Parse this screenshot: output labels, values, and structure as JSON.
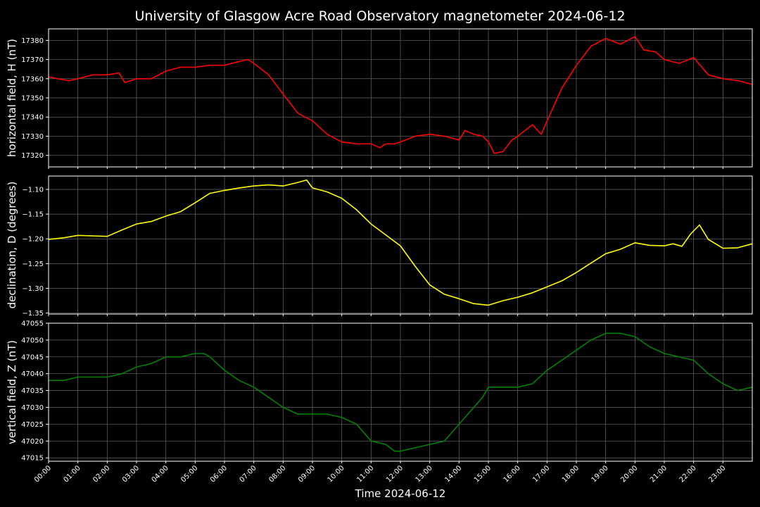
{
  "chart_data": {
    "title": "University of Glasgow Acre Road Observatory magnetometer 2024-06-12",
    "xlabel": "Time 2024-06-12",
    "xlim": [
      0,
      24
    ],
    "x_ticks": [
      "00:00",
      "01:00",
      "02:00",
      "03:00",
      "04:00",
      "05:00",
      "06:00",
      "07:00",
      "08:00",
      "09:00",
      "10:00",
      "11:00",
      "12:00",
      "13:00",
      "14:00",
      "15:00",
      "16:00",
      "17:00",
      "18:00",
      "19:00",
      "20:00",
      "21:00",
      "22:00",
      "23:00"
    ],
    "grid": true,
    "panels": [
      {
        "type": "line",
        "ylabel": "horizontal field, H (nT)",
        "color": "#ff0000",
        "ylim": [
          17314,
          17386
        ],
        "yticks": [
          "17320",
          "17330",
          "17340",
          "17350",
          "17360",
          "17370",
          "17380"
        ],
        "series": [
          {
            "x": [
              0,
              0.3,
              0.7,
              1,
              1.5,
              2,
              2.4,
              2.6,
              2.8,
              3,
              3.5,
              4,
              4.5,
              5,
              5.5,
              6,
              6.5,
              6.8,
              7,
              7.5,
              8,
              8.5,
              9,
              9.5,
              10,
              10.5,
              11,
              11.3,
              11.5,
              11.8,
              12,
              12.5,
              13,
              13.5,
              14,
              14.2,
              14.5,
              14.8,
              15,
              15.2,
              15.5,
              15.8,
              16,
              16.5,
              16.8,
              17,
              17.5,
              18,
              18.5,
              19,
              19.5,
              20,
              20.3,
              20.7,
              21,
              21.5,
              22,
              22.5,
              23,
              23.5,
              24
            ],
            "y": [
              17361,
              17360,
              17359,
              17360,
              17362,
              17362,
              17363,
              17358,
              17359,
              17360,
              17360,
              17364,
              17366,
              17366,
              17367,
              17367,
              17369,
              17370,
              17368,
              17362,
              17352,
              17342,
              17338,
              17331,
              17327,
              17326,
              17326,
              17324,
              17326,
              17326,
              17327,
              17330,
              17331,
              17330,
              17328,
              17333,
              17331,
              17330,
              17327,
              17321,
              17322,
              17328,
              17330,
              17336,
              17331,
              17338,
              17355,
              17367,
              17377,
              17381,
              17378,
              17382,
              17375,
              17374,
              17370,
              17368,
              17371,
              17362,
              17360,
              17359,
              17357
            ]
          }
        ]
      },
      {
        "type": "line",
        "ylabel": "declination, D (degrees)",
        "color": "#ffff00",
        "ylim": [
          -1.352,
          -1.073
        ],
        "yticks": [
          "−1.10",
          "−1.15",
          "−1.20",
          "−1.25",
          "−1.30",
          "−1.35"
        ],
        "series": [
          {
            "x": [
              0,
              0.5,
              1,
              1.5,
              2,
              2.5,
              3,
              3.5,
              4,
              4.5,
              5,
              5.5,
              6,
              6.5,
              7,
              7.5,
              8,
              8.5,
              8.8,
              9,
              9.5,
              10,
              10.5,
              11,
              11.5,
              12,
              12.5,
              13,
              13.5,
              14,
              14.5,
              15,
              15.5,
              16,
              16.5,
              17,
              17.5,
              18,
              18.5,
              19,
              19.5,
              20,
              20.5,
              21,
              21.3,
              21.6,
              21.9,
              22.2,
              22.5,
              23,
              23.5,
              24
            ],
            "y": [
              -1.201,
              -1.198,
              -1.193,
              -1.194,
              -1.195,
              -1.182,
              -1.17,
              -1.165,
              -1.154,
              -1.145,
              -1.127,
              -1.108,
              -1.102,
              -1.097,
              -1.093,
              -1.091,
              -1.093,
              -1.086,
              -1.081,
              -1.097,
              -1.105,
              -1.118,
              -1.141,
              -1.17,
              -1.192,
              -1.214,
              -1.255,
              -1.293,
              -1.312,
              -1.321,
              -1.331,
              -1.334,
              -1.325,
              -1.318,
              -1.309,
              -1.297,
              -1.285,
              -1.268,
              -1.249,
              -1.23,
              -1.221,
              -1.208,
              -1.213,
              -1.214,
              -1.21,
              -1.215,
              -1.19,
              -1.172,
              -1.201,
              -1.219,
              -1.218,
              -1.21
            ]
          }
        ]
      },
      {
        "type": "line",
        "ylabel": "vertical field, Z (nT)",
        "color": "#008000",
        "ylim": [
          47014,
          47055
        ],
        "yticks": [
          "47015",
          "47020",
          "47025",
          "47030",
          "47035",
          "47040",
          "47045",
          "47050",
          "47055"
        ],
        "series": [
          {
            "x": [
              0,
              0.5,
              1,
              1.5,
              2,
              2.5,
              3,
              3.5,
              4,
              4.5,
              5,
              5.3,
              5.5,
              6,
              6.5,
              7,
              7.5,
              8,
              8.5,
              9,
              9.5,
              10,
              10.5,
              11,
              11.5,
              11.8,
              12,
              12.5,
              13,
              13.5,
              14,
              14.5,
              14.8,
              15,
              15.5,
              16,
              16.5,
              17,
              17.5,
              18,
              18.5,
              19,
              19.5,
              20,
              20.5,
              21,
              21.5,
              22,
              22.5,
              23,
              23.5,
              24
            ],
            "y": [
              47038,
              47038,
              47039,
              47039,
              47039,
              47040,
              47042,
              47043,
              47045,
              47045,
              47046,
              47046,
              47045,
              47041,
              47038,
              47036,
              47033,
              47030,
              47028,
              47028,
              47028,
              47027,
              47025,
              47020,
              47019,
              47017,
              47017,
              47018,
              47019,
              47020,
              47025,
              47030,
              47033,
              47036,
              47036,
              47036,
              47037,
              47041,
              47044,
              47047,
              47050,
              47052,
              47052,
              47051,
              47048,
              47046,
              47045,
              47044,
              47040,
              47037,
              47035,
              47036
            ]
          }
        ]
      }
    ]
  }
}
